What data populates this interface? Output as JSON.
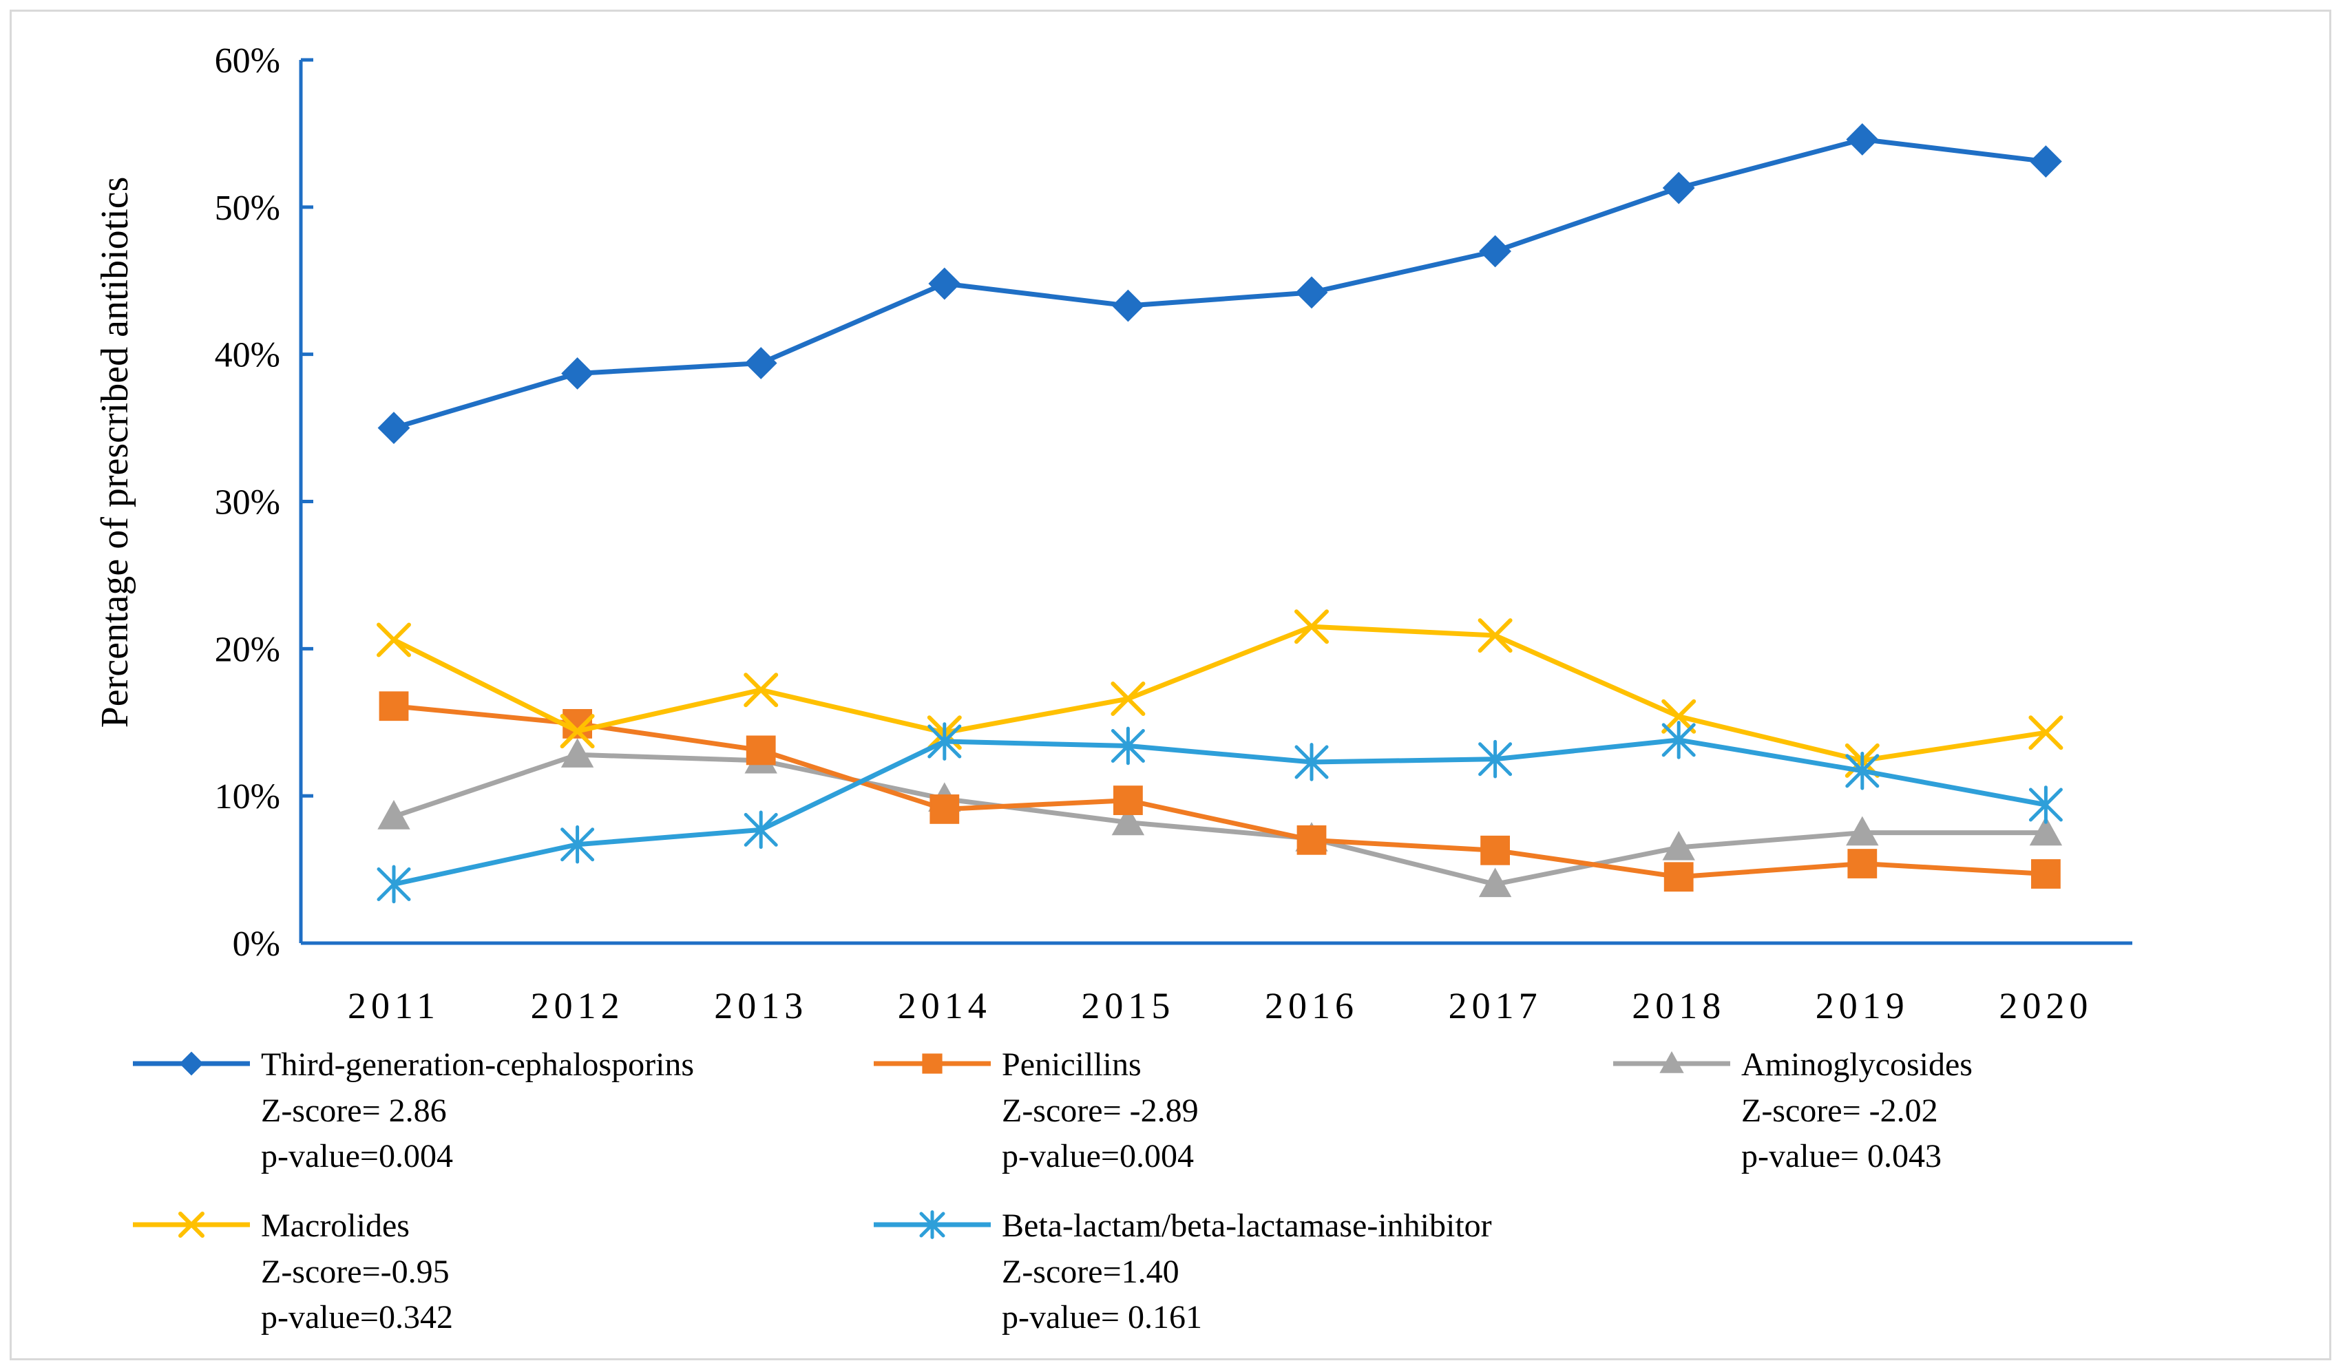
{
  "chart_data": {
    "type": "line",
    "title": "",
    "xlabel": "",
    "ylabel": "Percentage of prescribed antibiotics",
    "categories": [
      "2011",
      "2012",
      "2013",
      "2014",
      "2015",
      "2016",
      "2017",
      "2018",
      "2019",
      "2020"
    ],
    "ylim": [
      0,
      60
    ],
    "yticks": [
      "0%",
      "10%",
      "20%",
      "30%",
      "40%",
      "50%",
      "60%"
    ],
    "grid": false,
    "legend_position": "bottom",
    "series": [
      {
        "name": "Third-generation-cephalosporins",
        "color": "#1f6fc5",
        "marker": "diamond",
        "values": [
          35.0,
          38.7,
          39.4,
          44.8,
          43.3,
          44.2,
          47.0,
          51.3,
          54.6,
          53.1
        ],
        "z_score": "Z-score= 2.86",
        "p_value": "p-value=0.004"
      },
      {
        "name": "Penicillins",
        "color": "#f07b22",
        "marker": "square",
        "values": [
          16.1,
          14.9,
          13.1,
          9.1,
          9.7,
          7.0,
          6.3,
          4.5,
          5.4,
          4.7
        ],
        "z_score": " Z-score= -2.89",
        "p_value": "p-value=0.004"
      },
      {
        "name": "Aminoglycosides",
        "color": "#a5a5a5",
        "marker": "triangle",
        "values": [
          8.6,
          12.8,
          12.4,
          9.8,
          8.2,
          7.1,
          4.0,
          6.5,
          7.5,
          7.5
        ],
        "z_score": "Z-score= -2.02",
        "p_value": "p-value= 0.043"
      },
      {
        "name": "Macrolides",
        "color": "#ffc000",
        "marker": "x",
        "values": [
          20.6,
          14.4,
          17.2,
          14.3,
          16.6,
          21.5,
          20.9,
          15.4,
          12.4,
          14.3
        ],
        "z_score": "Z-score=-0.95",
        "p_value": "p-value=0.342"
      },
      {
        "name": "Beta-lactam/beta-lactamase-inhibitor",
        "color": "#2e9fd9",
        "marker": "asterisk",
        "values": [
          4.0,
          6.7,
          7.7,
          13.7,
          13.4,
          12.3,
          12.5,
          13.8,
          11.7,
          9.4
        ],
        "z_score": "Z-score=1.40",
        "p_value": "p-value=  0.161"
      }
    ]
  },
  "colors": {
    "axis": "#1f6fc5",
    "border": "#d9d9d9",
    "text": "#000000"
  }
}
